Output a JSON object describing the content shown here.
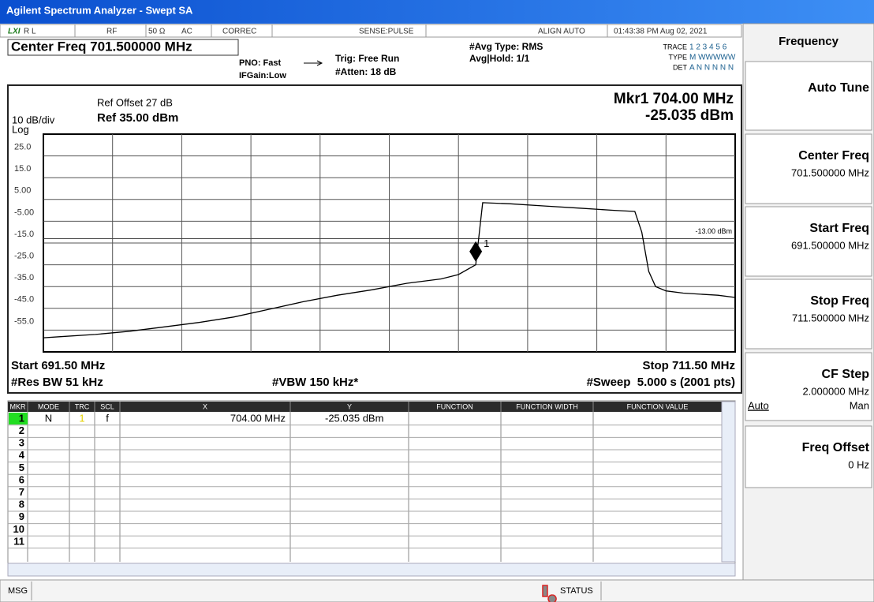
{
  "title_bar": "Agilent Spectrum Analyzer - Swept SA",
  "status_bar": {
    "logo": "LXI",
    "rl": "R L",
    "rf": "RF",
    "impedance": "50 Ω",
    "coupling": "AC",
    "correc": "CORREC",
    "sense": "SENSE:PULSE",
    "align": "ALIGN AUTO",
    "datetime": "01:43:38 PM Aug 02, 2021"
  },
  "settings": {
    "center_freq": "Center Freq 701.500000 MHz",
    "pno": "PNO: Fast",
    "ifgain": "IFGain:Low",
    "trig": "Trig: Free Run",
    "atten": "#Atten: 18 dB",
    "avg_type": "#Avg Type: RMS",
    "avg_hold": "Avg|Hold: 1/1",
    "trace_label": "TRACE",
    "trace_nums": "1 2 3 4 5 6",
    "type_label": "TYPE",
    "type_vals": "M WWWWW",
    "det_label": "DET",
    "det_vals": "A N N N N N"
  },
  "chart_data": {
    "type": "line",
    "ref_offset": "Ref Offset 27 dB",
    "ref_level": "Ref 35.00 dBm",
    "scale": "10 dB/div",
    "scale_type": "Log",
    "marker_readout": [
      "Mkr1 704.00 MHz",
      "-25.035 dBm"
    ],
    "start": "Start 691.50 MHz",
    "stop": "Stop 711.50 MHz",
    "rbw": "#Res BW 51 kHz",
    "vbw": "#VBW 150 kHz*",
    "sweep": "#Sweep  5.000 s (2001 pts)",
    "x": [
      691.5,
      692,
      693,
      694,
      695,
      696,
      697,
      698,
      699,
      700,
      701,
      702,
      703,
      703.5,
      704,
      704.2,
      705,
      706,
      707,
      708,
      708.6,
      708.8,
      709,
      709.2,
      709.5,
      710,
      710.5,
      711,
      711.5
    ],
    "series": [
      {
        "color": "#000000",
        "values": [
          -58.5,
          -58,
          -57,
          -55.5,
          -53.5,
          -51.5,
          -49,
          -45.5,
          -42,
          -39,
          -36.5,
          -33.5,
          -31.5,
          -29.5,
          -25,
          3.5,
          3,
          2,
          1,
          0,
          -0.5,
          -10,
          -28,
          -35,
          -37,
          -38,
          -38.5,
          -39,
          -40
        ]
      }
    ],
    "xlim": [
      691.5,
      711.5
    ],
    "ylim": [
      -65,
      35
    ],
    "yticks": [
      {
        "value": 25,
        "label": "25.0"
      },
      {
        "value": 15,
        "label": "15.0"
      },
      {
        "value": 5,
        "label": "5.00"
      },
      {
        "value": -5,
        "label": "-5.00"
      },
      {
        "value": -15,
        "label": "-15.0"
      },
      {
        "value": -25,
        "label": "-25.0"
      },
      {
        "value": -35,
        "label": "-35.0"
      },
      {
        "value": -45,
        "label": "-45.0"
      },
      {
        "value": -55,
        "label": "-55.0"
      }
    ],
    "grid": true,
    "display_line": {
      "value": -13,
      "label": "-13.00 dBm"
    },
    "marker": {
      "x": 704,
      "y": -25.035,
      "label": "1"
    }
  },
  "marker_table": {
    "headers": [
      "MKR",
      "MODE",
      "TRC",
      "SCL",
      "X",
      "Y",
      "FUNCTION",
      "FUNCTION WIDTH",
      "FUNCTION VALUE"
    ],
    "rows": [
      [
        "1",
        "N",
        "1",
        "f",
        "704.00 MHz",
        "-25.035 dBm"
      ],
      [
        "2"
      ],
      [
        "3"
      ],
      [
        "4"
      ],
      [
        "5"
      ],
      [
        "6"
      ],
      [
        "7"
      ],
      [
        "8"
      ],
      [
        "9"
      ],
      [
        "10"
      ],
      [
        "11"
      ]
    ]
  },
  "softkeys": {
    "menu_title": "Frequency",
    "keys": [
      {
        "label": "Auto Tune"
      },
      {
        "label": "Center Freq",
        "value": "701.500000 MHz"
      },
      {
        "label": "Start Freq",
        "value": "691.500000 MHz"
      },
      {
        "label": "Stop Freq",
        "value": "711.500000 MHz"
      },
      {
        "label": "CF Step",
        "value": "2.000000 MHz",
        "options": [
          "Auto",
          "Man"
        ]
      },
      {
        "label": "Freq Offset",
        "value": "0 Hz"
      }
    ]
  },
  "message_bar": {
    "msg": "MSG",
    "status": "STATUS"
  }
}
